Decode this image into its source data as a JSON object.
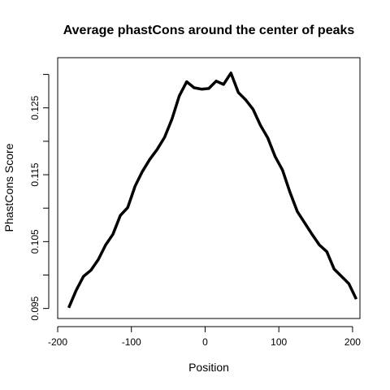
{
  "chart_data": {
    "type": "line",
    "title": "Average phastCons around the center of peaks",
    "xlabel": "Position",
    "ylabel": "PhastCons Score",
    "xlim": [
      -200,
      210
    ],
    "ylim": [
      0.0935,
      0.1325
    ],
    "xticks": [
      -200,
      -100,
      0,
      100,
      200
    ],
    "yticks": [
      0.095,
      0.1,
      0.105,
      0.11,
      0.115,
      0.12,
      0.125,
      0.13
    ],
    "ytick_labels": [
      "0.095",
      "",
      "0.105",
      "",
      "0.115",
      "",
      "0.125",
      ""
    ],
    "grid": false,
    "series": [
      {
        "color": "#000000",
        "x": [
          -185,
          -175,
          -165,
          -155,
          -145,
          -135,
          -125,
          -115,
          -105,
          -95,
          -85,
          -75,
          -65,
          -55,
          -45,
          -35,
          -25,
          -15,
          -5,
          5,
          15,
          25,
          35,
          45,
          55,
          65,
          75,
          85,
          95,
          105,
          115,
          125,
          135,
          145,
          155,
          165,
          175,
          185,
          195,
          205
        ],
        "y": [
          0.0951,
          0.0977,
          0.0998,
          0.1007,
          0.1023,
          0.1045,
          0.1061,
          0.1089,
          0.1101,
          0.1133,
          0.1155,
          0.1173,
          0.1188,
          0.1206,
          0.1233,
          0.1268,
          0.1289,
          0.128,
          0.1278,
          0.1279,
          0.129,
          0.1285,
          0.1302,
          0.1273,
          0.1262,
          0.1248,
          0.1224,
          0.1205,
          0.1177,
          0.1157,
          0.1124,
          0.1095,
          0.1078,
          0.1061,
          0.1045,
          0.1035,
          0.1009,
          0.0998,
          0.0987,
          0.0964
        ]
      }
    ]
  }
}
